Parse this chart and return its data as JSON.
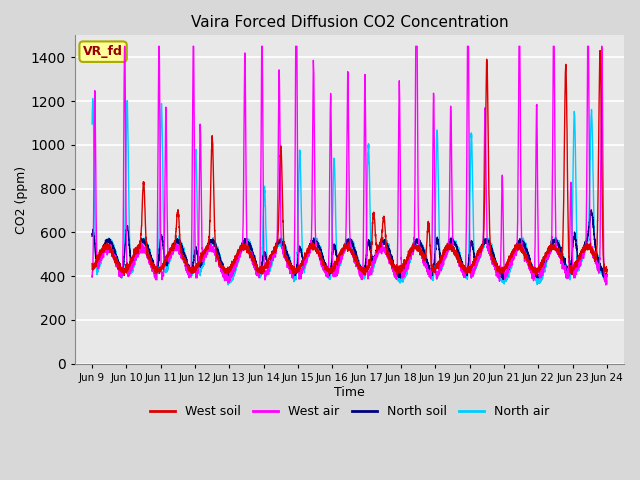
{
  "title": "Vaira Forced Diffusion CO2 Concentration",
  "xlabel": "Time",
  "ylabel": "CO2 (ppm)",
  "ylim": [
    0,
    1500
  ],
  "yticks": [
    0,
    200,
    400,
    600,
    800,
    1000,
    1200,
    1400
  ],
  "x_tick_labels": [
    "Jun 9",
    "Jun 10",
    "Jun 11",
    "Jun 12",
    "Jun 13",
    "Jun 14",
    "Jun 15",
    "Jun 16",
    "Jun 17",
    "Jun 18",
    "Jun 19",
    "Jun 20",
    "Jun 21",
    "Jun 22",
    "Jun 23",
    "Jun 24"
  ],
  "legend_labels": [
    "West soil",
    "West air",
    "North soil",
    "North air"
  ],
  "legend_colors": [
    "#dd0000",
    "#ff00ff",
    "#00007f",
    "#00ccff"
  ],
  "fig_bg_color": "#d8d8d8",
  "plot_bg_color": "#e8e8e8",
  "grid_color": "#ffffff",
  "annotation_text": "VR_fd",
  "annotation_bg": "#ffff99",
  "annotation_border": "#aaaa00",
  "annotation_text_color": "#990000",
  "line_width": 1.0,
  "num_days": 15,
  "pts_per_day": 288
}
